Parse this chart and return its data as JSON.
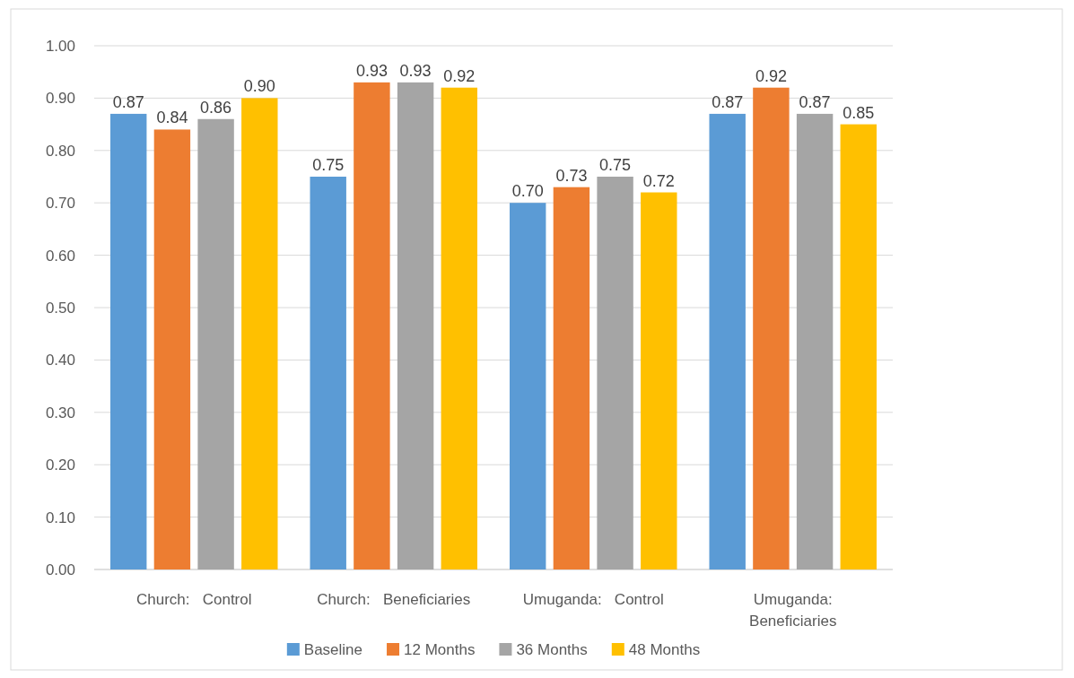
{
  "chart_data": {
    "type": "bar",
    "categories": [
      "Church:   Control",
      "Church:   Beneficiaries",
      "Umuganda:   Control",
      "Umuganda:   Beneficiaries"
    ],
    "series": [
      {
        "name": "Baseline",
        "color": "#5b9bd5",
        "values": [
          0.87,
          0.75,
          0.7,
          0.87
        ],
        "value_labels": [
          "0.87",
          "0.75",
          "0.70",
          "0.87"
        ]
      },
      {
        "name": "12 Months",
        "color": "#ed7d31",
        "values": [
          0.84,
          0.93,
          0.73,
          0.92
        ],
        "value_labels": [
          "0.84",
          "0.93",
          "0.73",
          "0.92"
        ]
      },
      {
        "name": "36 Months",
        "color": "#a5a5a5",
        "values": [
          0.86,
          0.93,
          0.75,
          0.87
        ],
        "value_labels": [
          "0.86",
          "0.93",
          "0.75",
          "0.87"
        ]
      },
      {
        "name": "48 Months",
        "color": "#ffc000",
        "values": [
          0.9,
          0.92,
          0.72,
          0.85
        ],
        "value_labels": [
          "0.90",
          "0.92",
          "0.72",
          "0.85"
        ]
      }
    ],
    "ylim": [
      0,
      1
    ],
    "yticks": [
      {
        "value": 0,
        "label": "0.00"
      },
      {
        "value": 0.1,
        "label": "0.10"
      },
      {
        "value": 0.2,
        "label": "0.20"
      },
      {
        "value": 0.3,
        "label": "0.30"
      },
      {
        "value": 0.4,
        "label": "0.40"
      },
      {
        "value": 0.5,
        "label": "0.50"
      },
      {
        "value": 0.6,
        "label": "0.60"
      },
      {
        "value": 0.7,
        "label": "0.70"
      },
      {
        "value": 0.8,
        "label": "0.80"
      },
      {
        "value": 0.9,
        "label": "0.90"
      },
      {
        "value": 1,
        "label": "1.00"
      }
    ],
    "grid": "y",
    "legend": "bottom"
  }
}
